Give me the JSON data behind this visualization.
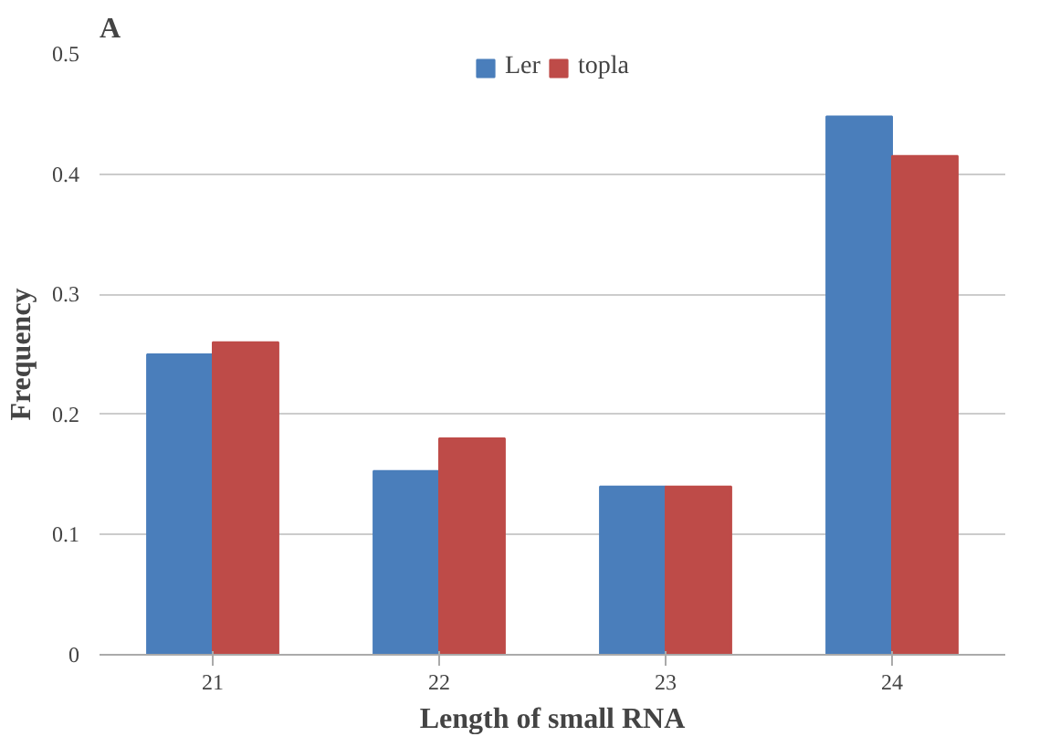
{
  "chart_data": {
    "type": "bar",
    "title": "A",
    "xlabel": "Length of small RNA",
    "ylabel": "Frequency",
    "categories": [
      "21",
      "22",
      "23",
      "24"
    ],
    "series": [
      {
        "name": "Ler",
        "color": "#4a7ebb",
        "values": [
          0.25,
          0.153,
          0.14,
          0.448
        ]
      },
      {
        "name": "topla",
        "color": "#be4b48",
        "values": [
          0.26,
          0.18,
          0.14,
          0.415
        ]
      }
    ],
    "ylim": [
      0,
      0.5
    ],
    "yticks": [
      0,
      0.1,
      0.2,
      0.3,
      0.4,
      0.5
    ],
    "grid": "y",
    "legend": "top"
  }
}
